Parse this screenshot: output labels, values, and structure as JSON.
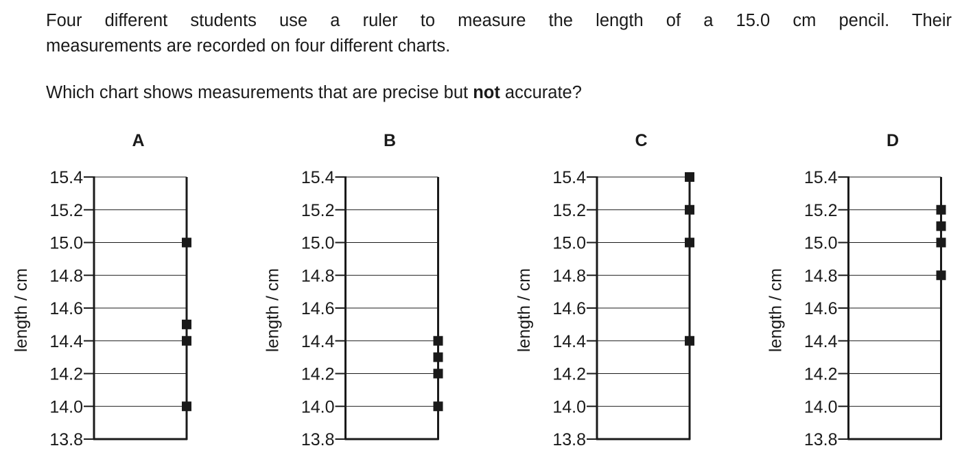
{
  "question": {
    "line1": "Four different students use a ruler to measure the length of a 15.0 cm pencil. Their",
    "line2": "measurements are recorded on four different charts.",
    "prompt_before": "Which chart shows measurements that are precise but ",
    "prompt_bold": "not",
    "prompt_after": " accurate?"
  },
  "chart_data": [
    {
      "type": "scatter",
      "title": "A",
      "ylabel": "length / cm",
      "ylim": [
        13.8,
        15.4
      ],
      "yticks": [
        "13.8",
        "14.0",
        "14.2",
        "14.4",
        "14.6",
        "14.8",
        "15.0",
        "15.2",
        "15.4"
      ],
      "grid": true,
      "values": [
        15.0,
        14.5,
        14.4,
        14.0
      ]
    },
    {
      "type": "scatter",
      "title": "B",
      "ylabel": "length / cm",
      "ylim": [
        13.8,
        15.4
      ],
      "yticks": [
        "13.8",
        "14.0",
        "14.2",
        "14.4",
        "14.6",
        "14.8",
        "15.0",
        "15.2",
        "15.4"
      ],
      "grid": true,
      "values": [
        14.4,
        14.3,
        14.2,
        14.0
      ]
    },
    {
      "type": "scatter",
      "title": "C",
      "ylabel": "length / cm",
      "ylim": [
        13.8,
        15.4
      ],
      "yticks": [
        "13.8",
        "14.0",
        "14.2",
        "14.4",
        "14.6",
        "14.8",
        "15.0",
        "15.2",
        "15.4"
      ],
      "grid": true,
      "values": [
        15.4,
        15.2,
        15.0,
        14.4
      ]
    },
    {
      "type": "scatter",
      "title": "D",
      "ylabel": "length / cm",
      "ylim": [
        13.8,
        15.4
      ],
      "yticks": [
        "13.8",
        "14.0",
        "14.2",
        "14.4",
        "14.6",
        "14.8",
        "15.0",
        "15.2",
        "15.4"
      ],
      "grid": true,
      "values": [
        15.2,
        15.1,
        15.0,
        14.8
      ]
    }
  ]
}
